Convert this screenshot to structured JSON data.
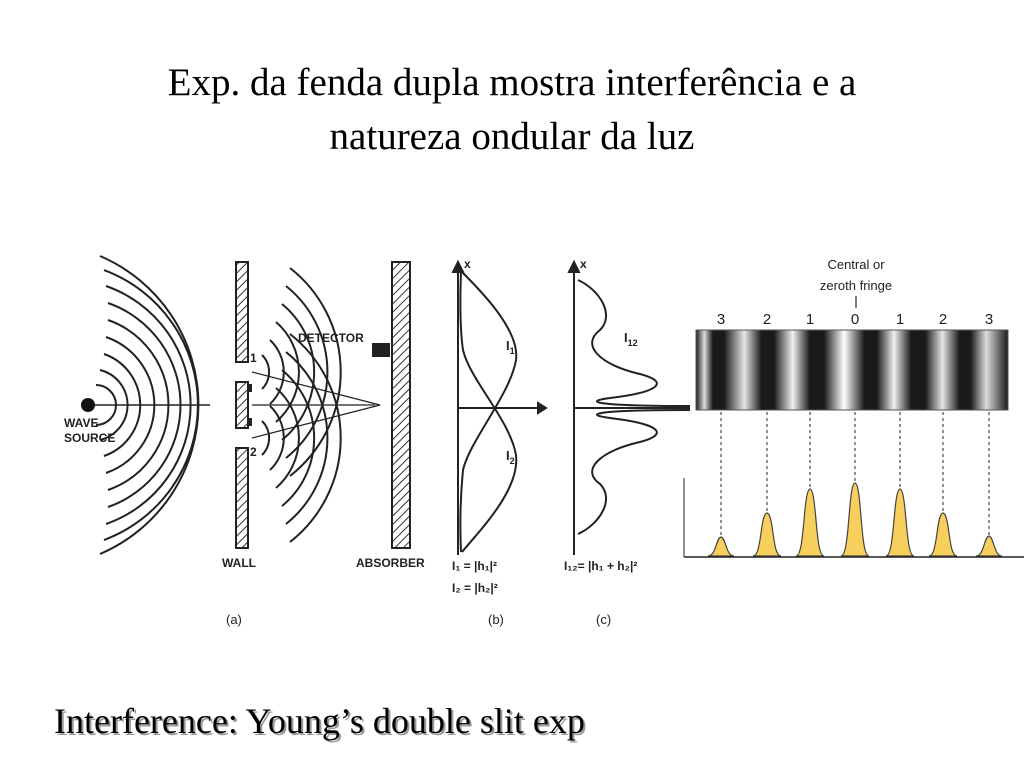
{
  "title": {
    "line1": "Exp. da fenda dupla mostra interferência e a",
    "line2": "natureza ondular da luz"
  },
  "diagram": {
    "wave_source_1": "WAVE",
    "wave_source_2": "SOURCE",
    "slit_1": "1",
    "slit_2": "2",
    "detector": "DETECTOR",
    "wall": "WALL",
    "absorber": "ABSORBER",
    "panel_a": "(a)",
    "panel_b": "(b)",
    "panel_c": "(c)",
    "axis_x_b": "x",
    "axis_x_c": "x",
    "curve_i1": "I",
    "curve_i1_sub": "1",
    "curve_i2": "I",
    "curve_i2_sub": "2",
    "curve_i12": "I",
    "curve_i12_sub": "12",
    "formula_i1": "I₁ = |h₁|²",
    "formula_i2": "I₂ = |h₂|²",
    "formula_i12": "I₁₂= |h₁ + h₂|²",
    "central_fringe_1": "Central or",
    "central_fringe_2": "zeroth fringe",
    "fringe_orders": [
      "3",
      "2",
      "1",
      "0",
      "1",
      "2",
      "3"
    ]
  },
  "caption": "Interference: Young’s double slit exp"
}
